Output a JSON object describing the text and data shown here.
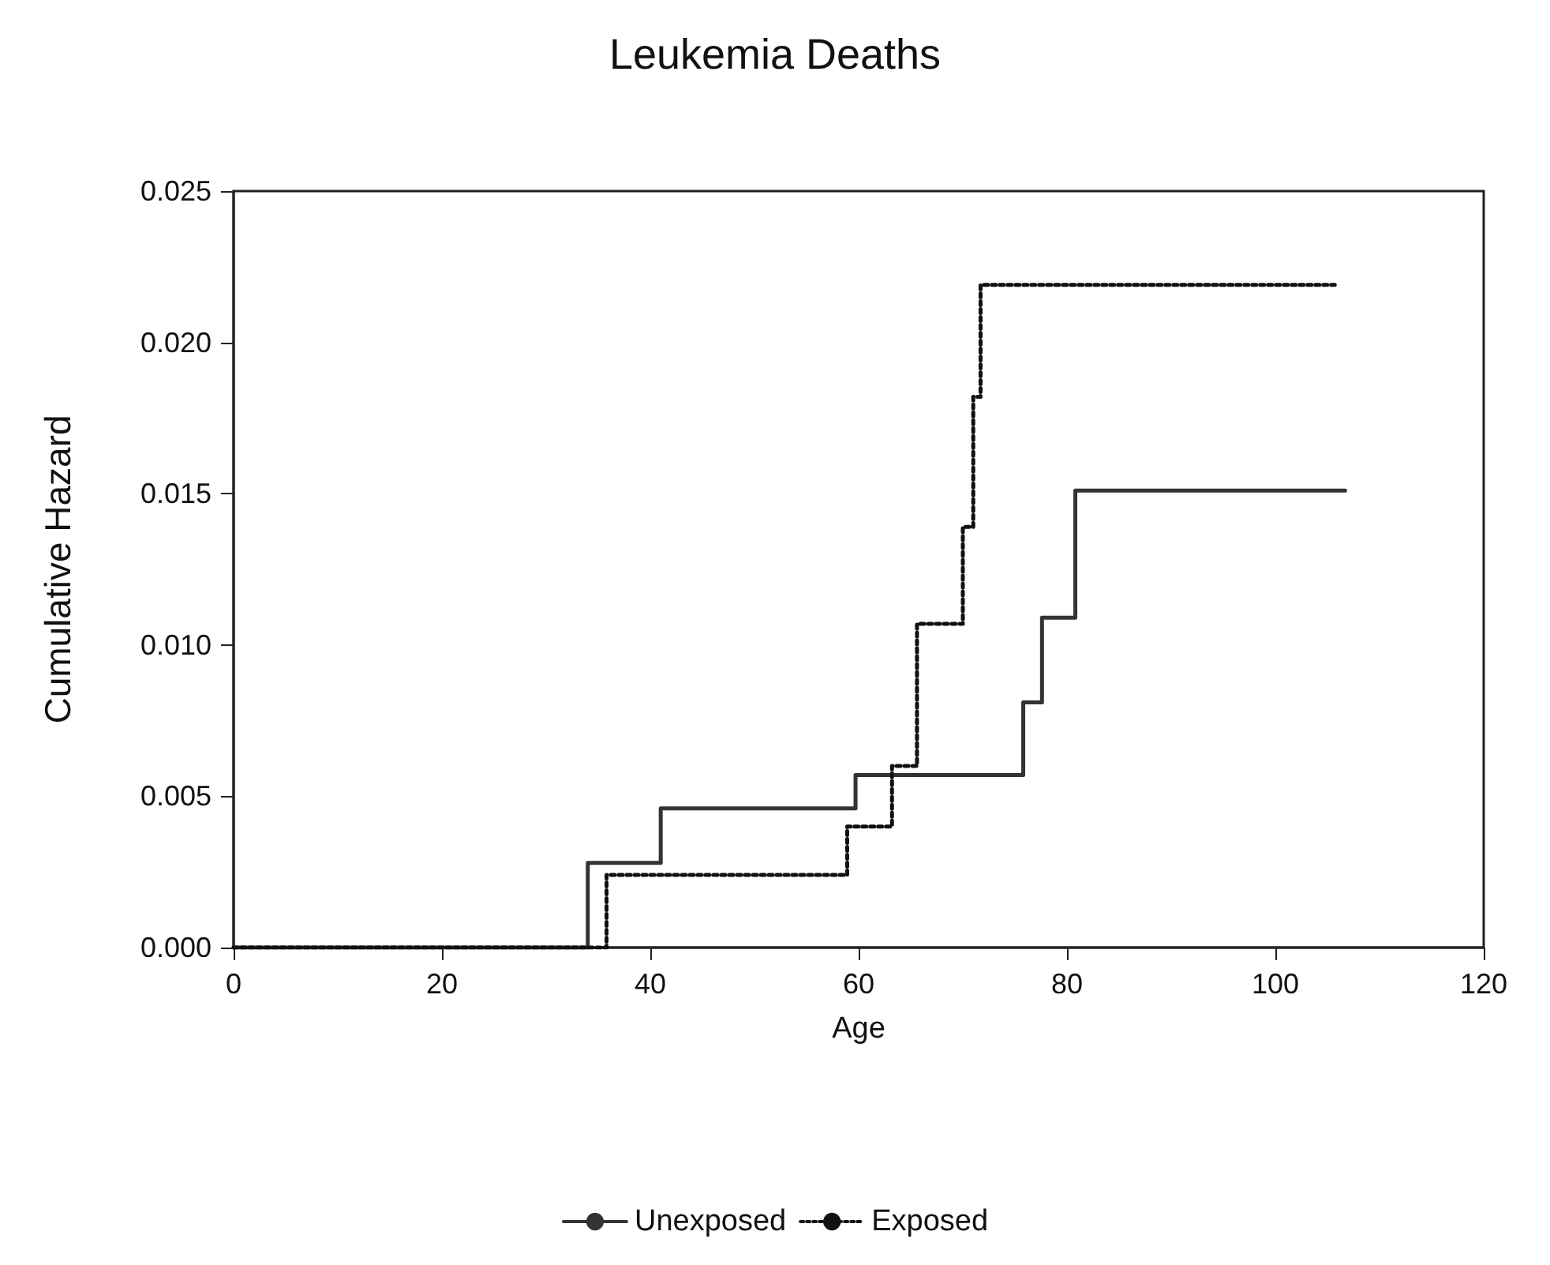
{
  "chart_data": {
    "type": "step",
    "title": "Leukemia Deaths",
    "xlabel": "Age",
    "ylabel": "Cumulative Hazard",
    "series": [
      {
        "name": "Unexposed",
        "color": "#333333",
        "line_style": "solid",
        "x": [
          0,
          34,
          41,
          59.7,
          75.8,
          77.6,
          80.8,
          106.7
        ],
        "values": [
          0,
          0.0028,
          0.0046,
          0.0057,
          0.0081,
          0.0109,
          0.0151,
          0.0151
        ]
      },
      {
        "name": "Exposed",
        "color": "#111111",
        "line_style": "dotted",
        "x": [
          0,
          35.8,
          58.9,
          63.2,
          65.6,
          70.0,
          71.0,
          71.7,
          105.7
        ],
        "values": [
          0,
          0.0024,
          0.004,
          0.006,
          0.0107,
          0.0139,
          0.0182,
          0.0219,
          0.0219
        ]
      }
    ],
    "xlim": [
      0,
      120
    ],
    "xticks": [
      0,
      20,
      40,
      60,
      80,
      100,
      120
    ],
    "ylim": [
      0,
      0.025
    ],
    "yticks": [
      {
        "value": 0,
        "label": "0.000"
      },
      {
        "value": 0.005,
        "label": "0.005"
      },
      {
        "value": 0.01,
        "label": "0.010"
      },
      {
        "value": 0.015,
        "label": "0.015"
      },
      {
        "value": 0.02,
        "label": "0.020"
      },
      {
        "value": 0.025,
        "label": "0.025"
      }
    ],
    "grid": false,
    "legend": "bottom",
    "marker": "none"
  }
}
